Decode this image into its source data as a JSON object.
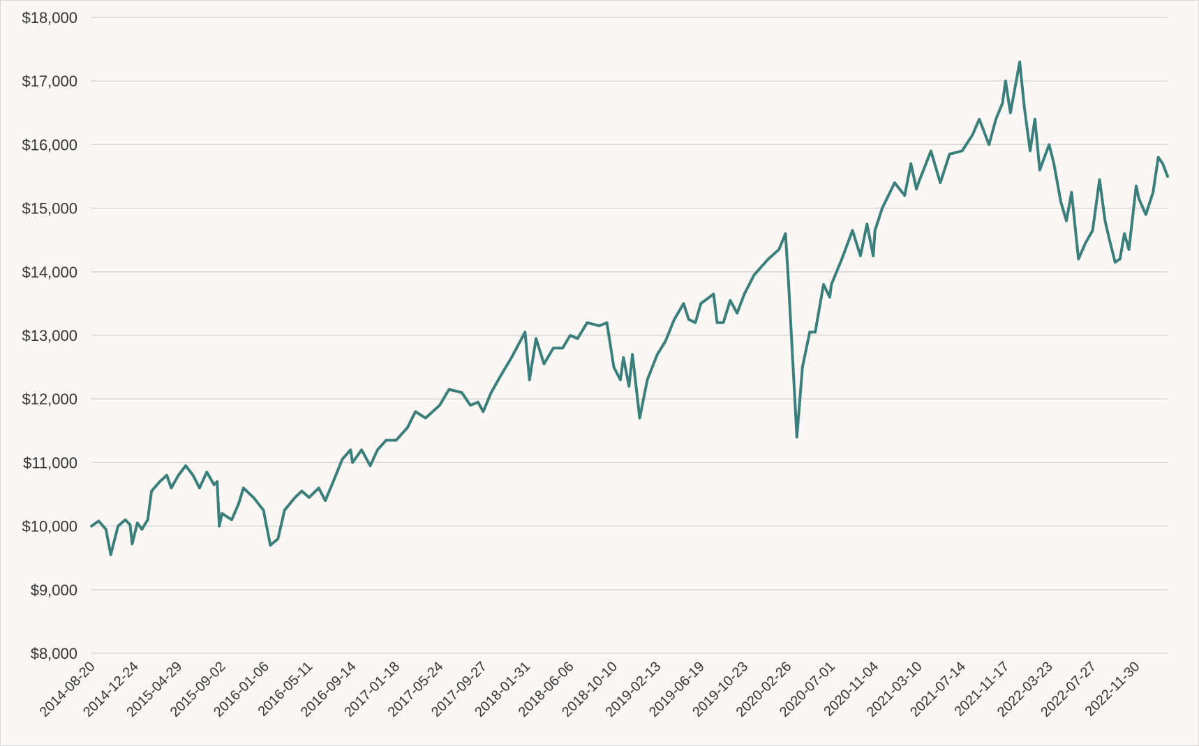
{
  "chart_data": {
    "type": "line",
    "title": "",
    "xlabel": "",
    "ylabel": "",
    "ylim": [
      8000,
      18000
    ],
    "xlim": [
      "2014-08-20",
      "2023-03-01"
    ],
    "grid": "horizontal",
    "legend": "none",
    "y_ticks": [
      {
        "value": 8000,
        "label": "$8,000"
      },
      {
        "value": 9000,
        "label": "$9,000"
      },
      {
        "value": 10000,
        "label": "$10,000"
      },
      {
        "value": 11000,
        "label": "$11,000"
      },
      {
        "value": 12000,
        "label": "$12,000"
      },
      {
        "value": 13000,
        "label": "$13,000"
      },
      {
        "value": 14000,
        "label": "$14,000"
      },
      {
        "value": 15000,
        "label": "$15,000"
      },
      {
        "value": 16000,
        "label": "$16,000"
      },
      {
        "value": 17000,
        "label": "$17,000"
      },
      {
        "value": 18000,
        "label": "$18,000"
      }
    ],
    "x_ticks": [
      "2014-08-20",
      "2014-12-24",
      "2015-04-29",
      "2015-09-02",
      "2016-01-06",
      "2016-05-11",
      "2016-09-14",
      "2017-01-18",
      "2017-05-24",
      "2017-09-27",
      "2018-01-31",
      "2018-06-06",
      "2018-10-10",
      "2019-02-13",
      "2019-06-19",
      "2019-10-23",
      "2020-02-26",
      "2020-07-01",
      "2020-11-04",
      "2021-03-10",
      "2021-07-14",
      "2021-11-17",
      "2022-03-23",
      "2022-07-27",
      "2022-11-30"
    ],
    "series": [
      {
        "color": "#3b7f7c",
        "points": [
          [
            "2014-08-20",
            10000
          ],
          [
            "2014-09-10",
            10080
          ],
          [
            "2014-10-01",
            9950
          ],
          [
            "2014-10-15",
            9550
          ],
          [
            "2014-11-05",
            10000
          ],
          [
            "2014-11-26",
            10100
          ],
          [
            "2014-12-10",
            10020
          ],
          [
            "2014-12-16",
            9720
          ],
          [
            "2014-12-31",
            10050
          ],
          [
            "2015-01-13",
            9950
          ],
          [
            "2015-01-30",
            10100
          ],
          [
            "2015-02-10",
            10550
          ],
          [
            "2015-03-06",
            10700
          ],
          [
            "2015-03-26",
            10800
          ],
          [
            "2015-04-08",
            10600
          ],
          [
            "2015-04-29",
            10800
          ],
          [
            "2015-05-20",
            10950
          ],
          [
            "2015-06-10",
            10800
          ],
          [
            "2015-06-29",
            10600
          ],
          [
            "2015-07-20",
            10850
          ],
          [
            "2015-08-10",
            10650
          ],
          [
            "2015-08-19",
            10700
          ],
          [
            "2015-08-25",
            10000
          ],
          [
            "2015-09-02",
            10200
          ],
          [
            "2015-09-30",
            10100
          ],
          [
            "2015-10-20",
            10350
          ],
          [
            "2015-11-03",
            10600
          ],
          [
            "2015-12-02",
            10450
          ],
          [
            "2015-12-31",
            10250
          ],
          [
            "2016-01-20",
            9700
          ],
          [
            "2016-02-11",
            9800
          ],
          [
            "2016-03-01",
            10250
          ],
          [
            "2016-03-31",
            10450
          ],
          [
            "2016-04-20",
            10550
          ],
          [
            "2016-05-11",
            10450
          ],
          [
            "2016-06-08",
            10600
          ],
          [
            "2016-06-27",
            10400
          ],
          [
            "2016-07-20",
            10700
          ],
          [
            "2016-08-15",
            11050
          ],
          [
            "2016-09-08",
            11200
          ],
          [
            "2016-09-14",
            11000
          ],
          [
            "2016-10-10",
            11200
          ],
          [
            "2016-11-04",
            10950
          ],
          [
            "2016-11-25",
            11200
          ],
          [
            "2016-12-20",
            11350
          ],
          [
            "2017-01-18",
            11350
          ],
          [
            "2017-02-20",
            11550
          ],
          [
            "2017-03-15",
            11800
          ],
          [
            "2017-04-13",
            11700
          ],
          [
            "2017-05-24",
            11900
          ],
          [
            "2017-06-20",
            12150
          ],
          [
            "2017-07-27",
            12100
          ],
          [
            "2017-08-21",
            11900
          ],
          [
            "2017-09-12",
            11950
          ],
          [
            "2017-09-27",
            11800
          ],
          [
            "2017-10-20",
            12100
          ],
          [
            "2017-11-15",
            12350
          ],
          [
            "2017-12-18",
            12650
          ],
          [
            "2018-01-26",
            13050
          ],
          [
            "2018-02-08",
            12300
          ],
          [
            "2018-02-27",
            12950
          ],
          [
            "2018-03-22",
            12550
          ],
          [
            "2018-04-18",
            12800
          ],
          [
            "2018-05-15",
            12800
          ],
          [
            "2018-06-06",
            13000
          ],
          [
            "2018-06-27",
            12950
          ],
          [
            "2018-07-25",
            13200
          ],
          [
            "2018-08-29",
            13150
          ],
          [
            "2018-09-20",
            13200
          ],
          [
            "2018-10-10",
            12500
          ],
          [
            "2018-10-29",
            12300
          ],
          [
            "2018-11-07",
            12650
          ],
          [
            "2018-11-23",
            12200
          ],
          [
            "2018-12-03",
            12700
          ],
          [
            "2018-12-24",
            11700
          ],
          [
            "2019-01-15",
            12300
          ],
          [
            "2019-02-13",
            12700
          ],
          [
            "2019-03-08",
            12900
          ],
          [
            "2019-04-03",
            13250
          ],
          [
            "2019-04-30",
            13500
          ],
          [
            "2019-05-15",
            13250
          ],
          [
            "2019-06-03",
            13200
          ],
          [
            "2019-06-19",
            13500
          ],
          [
            "2019-07-26",
            13650
          ],
          [
            "2019-08-05",
            13200
          ],
          [
            "2019-08-23",
            13200
          ],
          [
            "2019-09-12",
            13550
          ],
          [
            "2019-10-02",
            13350
          ],
          [
            "2019-10-23",
            13650
          ],
          [
            "2019-11-20",
            13950
          ],
          [
            "2019-12-31",
            14200
          ],
          [
            "2020-01-31",
            14350
          ],
          [
            "2020-02-19",
            14600
          ],
          [
            "2020-02-28",
            13800
          ],
          [
            "2020-03-12",
            12500
          ],
          [
            "2020-03-23",
            11400
          ],
          [
            "2020-04-08",
            12500
          ],
          [
            "2020-04-29",
            13050
          ],
          [
            "2020-05-15",
            13050
          ],
          [
            "2020-06-08",
            13800
          ],
          [
            "2020-06-26",
            13600
          ],
          [
            "2020-07-01",
            13800
          ],
          [
            "2020-07-31",
            14200
          ],
          [
            "2020-08-31",
            14650
          ],
          [
            "2020-09-23",
            14250
          ],
          [
            "2020-10-12",
            14750
          ],
          [
            "2020-10-30",
            14250
          ],
          [
            "2020-11-04",
            14650
          ],
          [
            "2020-11-25",
            15000
          ],
          [
            "2020-12-31",
            15400
          ],
          [
            "2021-01-29",
            15200
          ],
          [
            "2021-02-16",
            15700
          ],
          [
            "2021-03-04",
            15300
          ],
          [
            "2021-03-10",
            15400
          ],
          [
            "2021-04-15",
            15900
          ],
          [
            "2021-05-12",
            15400
          ],
          [
            "2021-06-08",
            15850
          ],
          [
            "2021-07-14",
            15900
          ],
          [
            "2021-08-13",
            16150
          ],
          [
            "2021-09-02",
            16400
          ],
          [
            "2021-09-30",
            16000
          ],
          [
            "2021-10-20",
            16400
          ],
          [
            "2021-11-08",
            16650
          ],
          [
            "2021-11-17",
            17000
          ],
          [
            "2021-12-01",
            16500
          ],
          [
            "2021-12-28",
            17300
          ],
          [
            "2022-01-10",
            16600
          ],
          [
            "2022-01-27",
            15900
          ],
          [
            "2022-02-10",
            16400
          ],
          [
            "2022-02-24",
            15600
          ],
          [
            "2022-03-23",
            16000
          ],
          [
            "2022-04-06",
            15700
          ],
          [
            "2022-04-26",
            15100
          ],
          [
            "2022-05-12",
            14800
          ],
          [
            "2022-05-27",
            15250
          ],
          [
            "2022-06-16",
            14200
          ],
          [
            "2022-07-06",
            14450
          ],
          [
            "2022-07-27",
            14650
          ],
          [
            "2022-08-16",
            15450
          ],
          [
            "2022-09-01",
            14800
          ],
          [
            "2022-09-14",
            14500
          ],
          [
            "2022-09-30",
            14150
          ],
          [
            "2022-10-14",
            14200
          ],
          [
            "2022-10-27",
            14600
          ],
          [
            "2022-11-09",
            14350
          ],
          [
            "2022-11-30",
            15350
          ],
          [
            "2022-12-08",
            15150
          ],
          [
            "2022-12-28",
            14900
          ],
          [
            "2023-01-18",
            15250
          ],
          [
            "2023-02-02",
            15800
          ],
          [
            "2023-02-15",
            15700
          ],
          [
            "2023-03-01",
            15500
          ]
        ]
      }
    ]
  }
}
